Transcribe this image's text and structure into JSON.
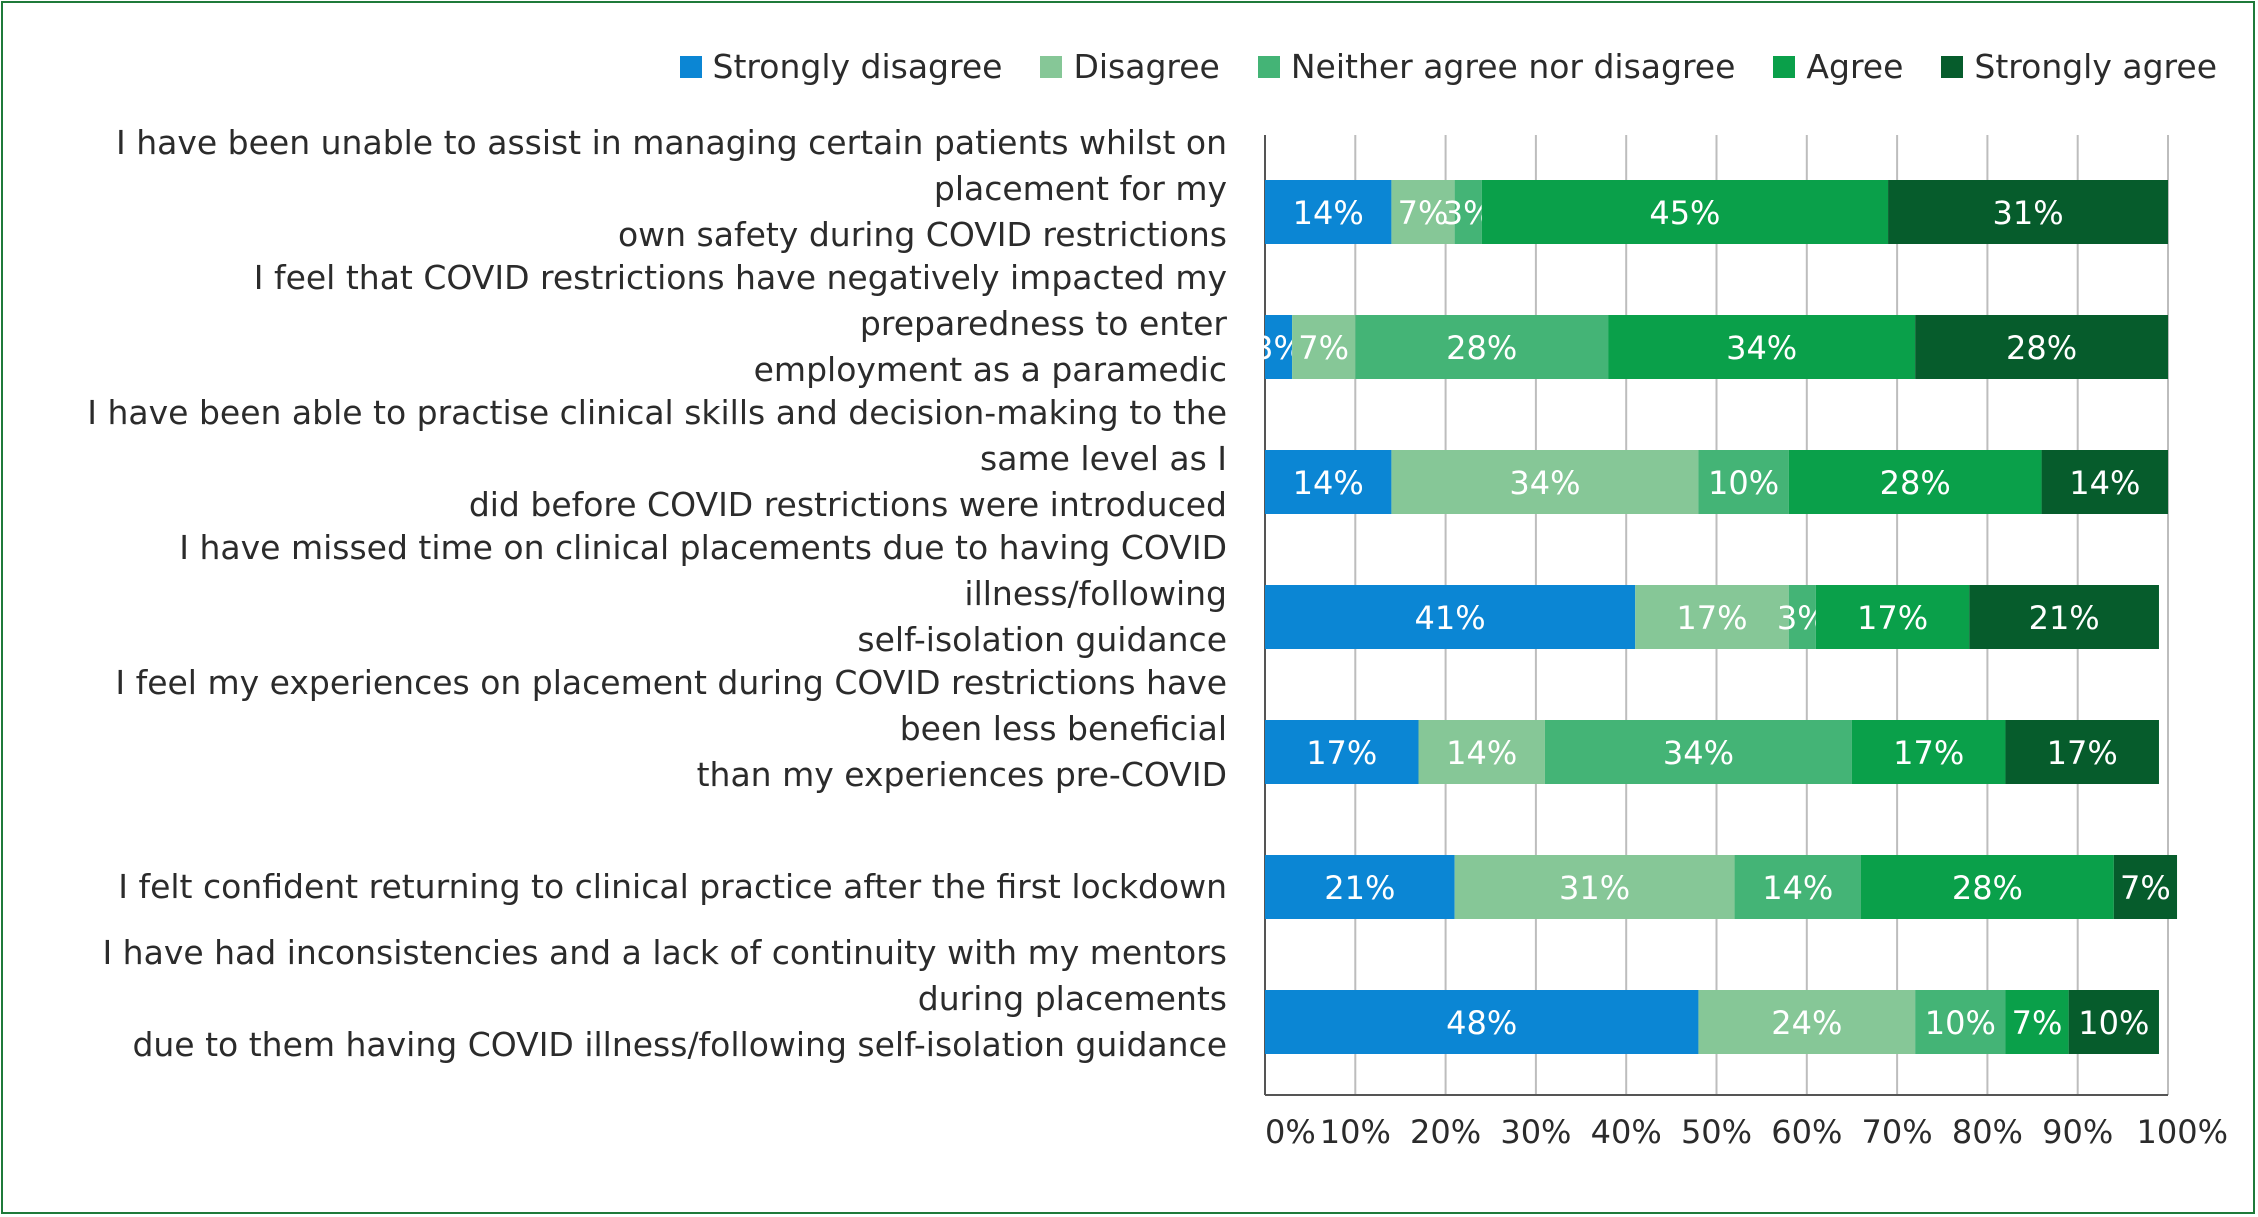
{
  "chart_data": {
    "type": "bar",
    "orientation": "horizontal",
    "stacked": true,
    "grid": true,
    "legend_position": "top-right",
    "xlim": [
      0,
      100
    ],
    "x_ticks": [
      "0%",
      "10%",
      "20%",
      "30%",
      "40%",
      "50%",
      "60%",
      "70%",
      "80%",
      "90%",
      "100%"
    ],
    "series": [
      {
        "name": "Strongly disagree",
        "color": "#0b86d4"
      },
      {
        "name": "Disagree",
        "color": "#86c797"
      },
      {
        "name": "Neither agree nor disagree",
        "color": "#44b476"
      },
      {
        "name": "Agree",
        "color": "#0aa04a"
      },
      {
        "name": "Strongly agree",
        "color": "#065c2c"
      }
    ],
    "rows": [
      {
        "label": [
          "I have been unable to assist in managing certain patients whilst on placement for my",
          "own safety during COVID restrictions"
        ],
        "values": [
          14,
          7,
          3,
          45,
          31
        ],
        "value_labels": [
          "14%",
          "7%",
          "3%",
          "45%",
          "31%"
        ]
      },
      {
        "label": [
          "I feel that COVID restrictions have negatively impacted my preparedness to enter",
          "employment as a paramedic"
        ],
        "values": [
          3,
          7,
          28,
          34,
          28
        ],
        "value_labels": [
          "3%",
          "7%",
          "28%",
          "34%",
          "28%"
        ]
      },
      {
        "label": [
          "I have been able to practise clinical skills and decision-making to the same level as I",
          "did before COVID restrictions were introduced"
        ],
        "values": [
          14,
          34,
          10,
          28,
          14
        ],
        "value_labels": [
          "14%",
          "34%",
          "10%",
          "28%",
          "14%"
        ]
      },
      {
        "label": [
          "I have missed time on clinical placements due to having COVID illness/following",
          "self-isolation guidance"
        ],
        "values": [
          41,
          17,
          3,
          17,
          21
        ],
        "value_labels": [
          "41%",
          "17%",
          "3%",
          "17%",
          "21%"
        ]
      },
      {
        "label": [
          "I feel my experiences on placement during COVID restrictions have been less beneficial",
          "than my experiences pre-COVID"
        ],
        "values": [
          17,
          14,
          34,
          17,
          17
        ],
        "value_labels": [
          "17%",
          "14%",
          "34%",
          "17%",
          "17%"
        ]
      },
      {
        "label": [
          "I felt confident returning to clinical practice after the first lockdown"
        ],
        "values": [
          21,
          31,
          14,
          28,
          7
        ],
        "value_labels": [
          "21%",
          "31%",
          "14%",
          "28%",
          "7%"
        ]
      },
      {
        "label": [
          "I have had inconsistencies and a lack of continuity with my mentors during placements",
          "due to them having COVID illness/following self-isolation guidance"
        ],
        "values": [
          48,
          24,
          10,
          7,
          10
        ],
        "value_labels": [
          "48%",
          "24%",
          "10%",
          "7%",
          "10%"
        ]
      }
    ]
  }
}
